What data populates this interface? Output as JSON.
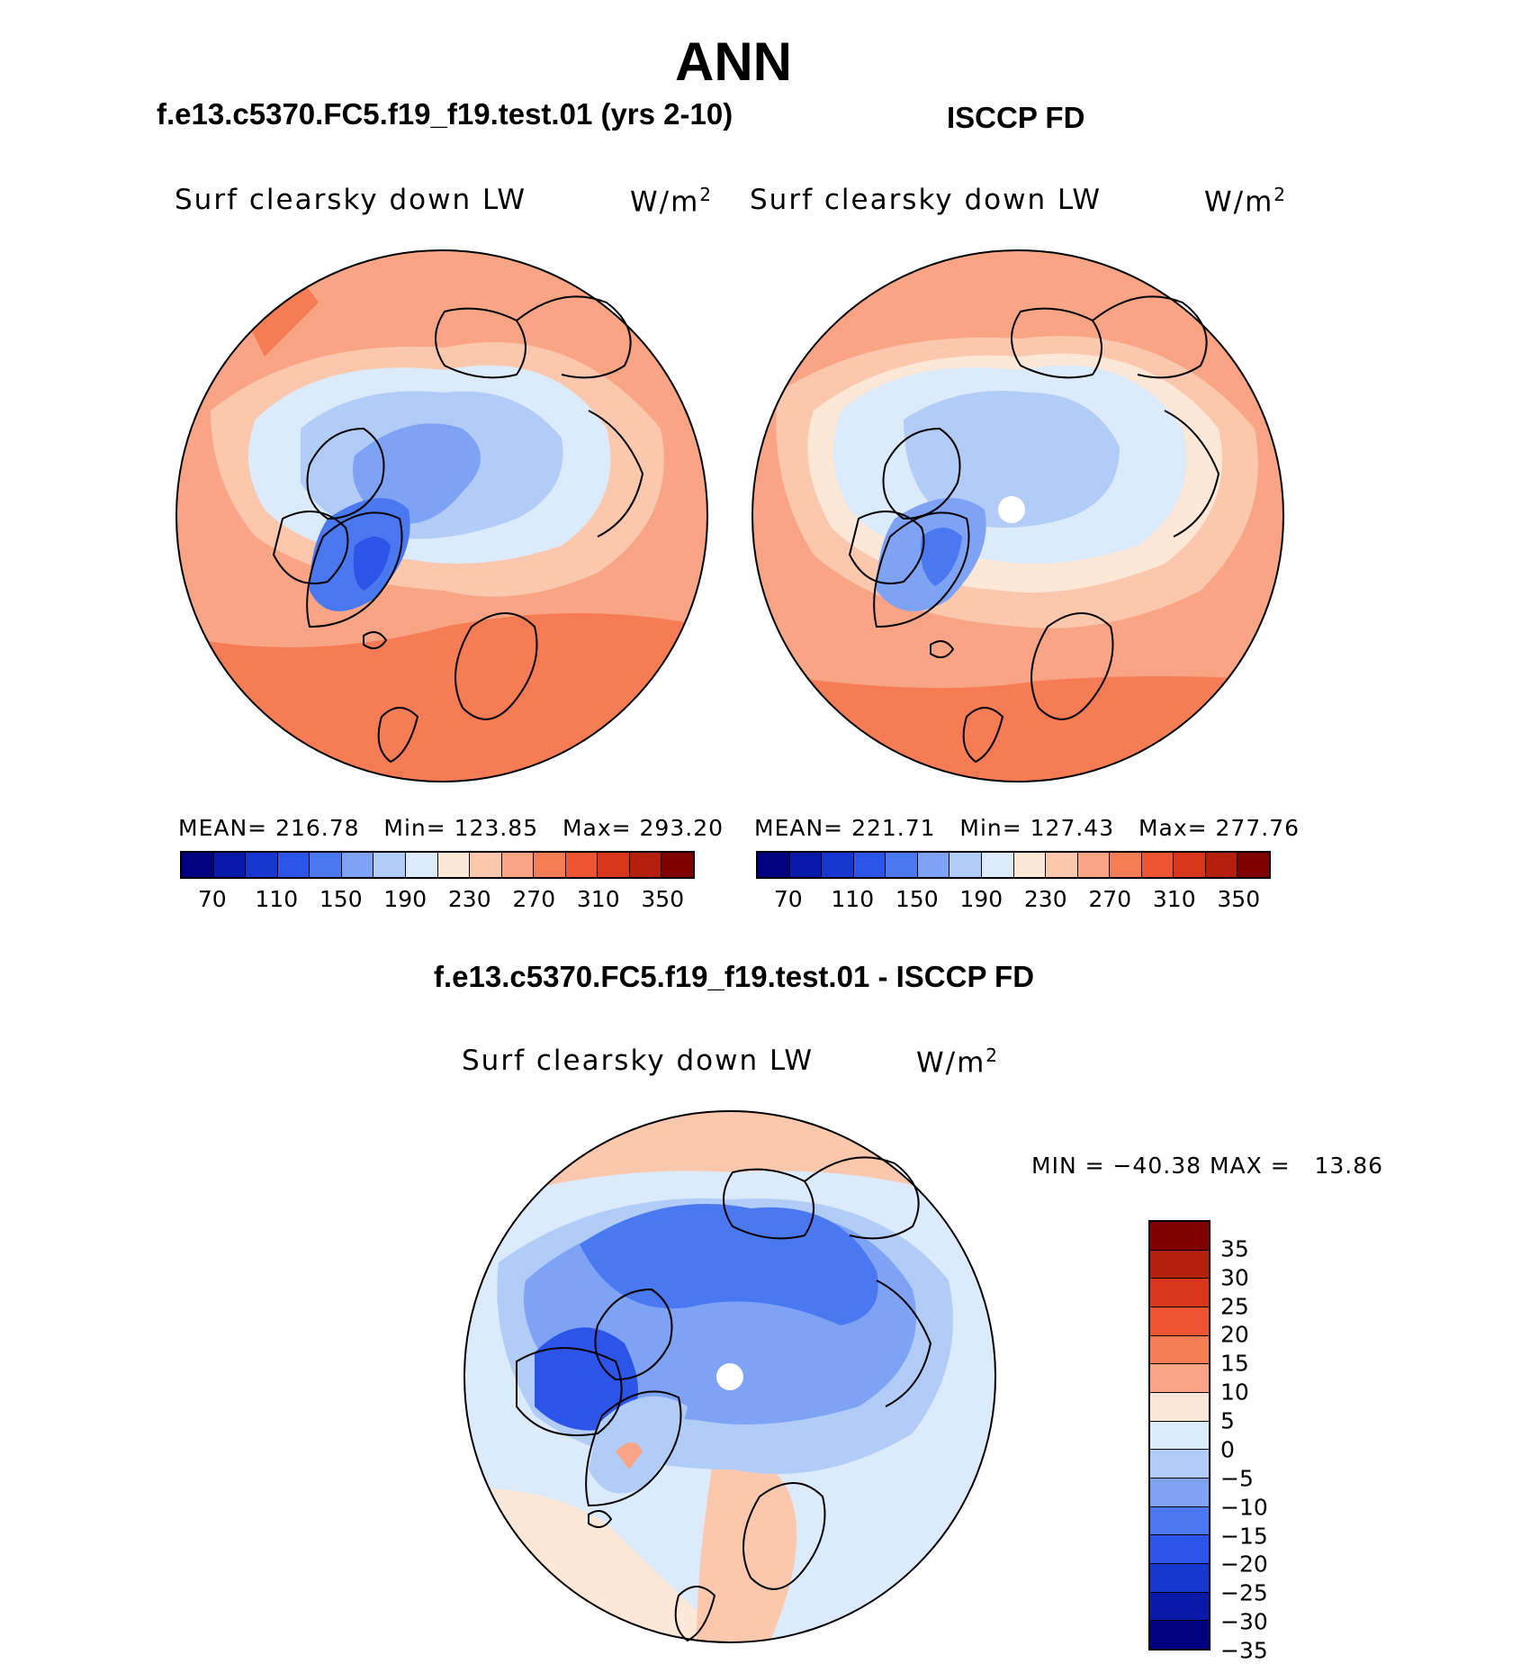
{
  "season": "ANN",
  "panels": [
    {
      "title": "f.e13.c5370.FC5.f19_f19.test.01 (yrs 2-10)",
      "field_label": "Surf clearsky down LW",
      "units": "W/m",
      "units_sup": "2",
      "stats": "MEAN= 216.78   Min= 123.85   Max= 293.20"
    },
    {
      "title": "ISCCP FD",
      "field_label": "Surf clearsky down LW",
      "units": "W/m",
      "units_sup": "2",
      "stats": "MEAN= 221.71   Min= 127.43   Max= 277.76"
    }
  ],
  "diff_panel": {
    "title": "f.e13.c5370.FC5.f19_f19.test.01 - ISCCP FD",
    "field_label": "Surf clearsky down LW",
    "units": "W/m",
    "units_sup": "2",
    "stats": "MIN = −40.38 MAX =   13.86"
  },
  "abs_colorbar": {
    "colors": [
      "#000080",
      "#0a1aa8",
      "#1638d0",
      "#2a55e8",
      "#4a78f0",
      "#7ea2f4",
      "#b2ccf8",
      "#dcebfb",
      "#fde8d8",
      "#fbc8ae",
      "#f9a484",
      "#f67c55",
      "#ed5431",
      "#d8361c",
      "#b4200e",
      "#800000"
    ],
    "tick_labels": [
      "70",
      "110",
      "150",
      "190",
      "230",
      "270",
      "310",
      "350"
    ]
  },
  "diff_colorbar": {
    "colors_top_to_bottom": [
      "#800000",
      "#b4200e",
      "#d8361c",
      "#ed5431",
      "#f67c55",
      "#f9a484",
      "#fde8d8",
      "#dcebfb",
      "#b2ccf8",
      "#7ea2f4",
      "#4a78f0",
      "#2a55e8",
      "#1638d0",
      "#0a1aa8",
      "#000080"
    ],
    "tick_labels": [
      "35",
      "30",
      "25",
      "20",
      "15",
      "10",
      "5",
      "0",
      "−5",
      "−10",
      "−15",
      "−20",
      "−25",
      "−30",
      "−35"
    ]
  },
  "colors": {
    "deep_blue": "#3a5ce8",
    "mid_blue": "#7ea2f4",
    "light_blue": "#b2ccf8",
    "pale_blue": "#dcebfb",
    "cream": "#fde8d8",
    "peach": "#fbc8ae",
    "salmon": "#f9a484",
    "orange": "#f67c55",
    "land_outline": "#000000",
    "missing": "#ffffff"
  }
}
